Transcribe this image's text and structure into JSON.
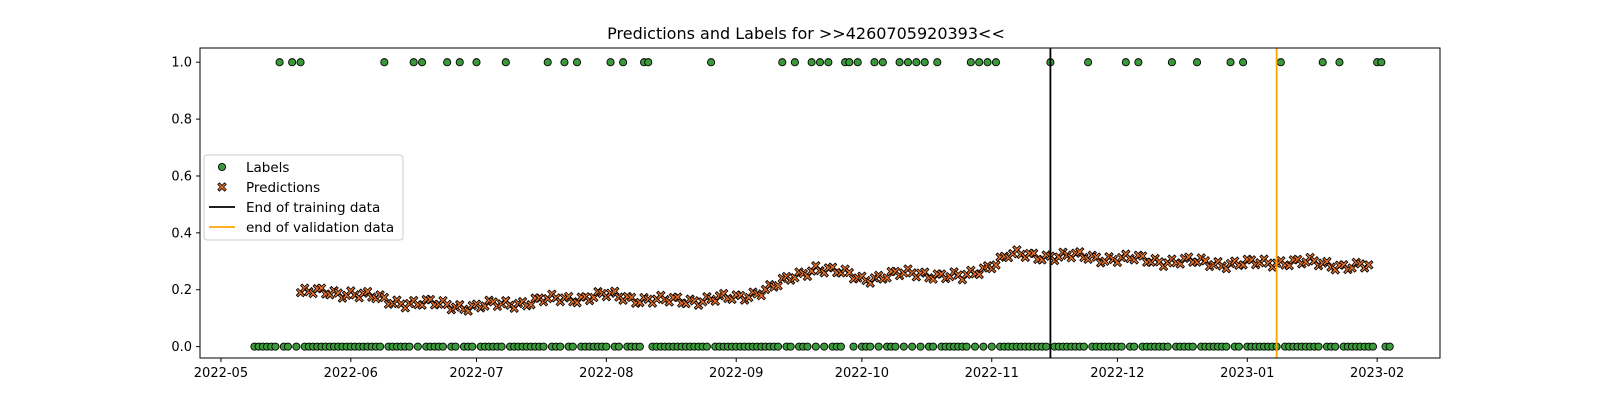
{
  "chart_data": {
    "type": "scatter",
    "title": "Predictions and Labels for >>4260705920393<<",
    "xlabel": "",
    "ylabel": "",
    "xlim": [
      "2022-04-26",
      "2023-02-16"
    ],
    "ylim": [
      -0.04,
      1.05
    ],
    "x_ticks": [
      "2022-05",
      "2022-06",
      "2022-07",
      "2022-08",
      "2022-09",
      "2022-10",
      "2022-11",
      "2022-12",
      "2023-01",
      "2023-02"
    ],
    "y_ticks": [
      "0.0",
      "0.2",
      "0.4",
      "0.6",
      "0.8",
      "1.0"
    ],
    "grid": false,
    "legend_placement": "center-left",
    "series": [
      {
        "name": "Labels",
        "kind": "points",
        "color": "#3a9a3a",
        "edge_color": "#000000",
        "ones_dates": [
          "2022-05-15",
          "2022-05-18",
          "2022-05-20",
          "2022-06-09",
          "2022-06-16",
          "2022-06-18",
          "2022-06-24",
          "2022-06-27",
          "2022-07-01",
          "2022-07-08",
          "2022-07-18",
          "2022-07-22",
          "2022-07-25",
          "2022-08-02",
          "2022-08-05",
          "2022-08-10",
          "2022-08-11",
          "2022-08-26",
          "2022-09-12",
          "2022-09-15",
          "2022-09-19",
          "2022-09-21",
          "2022-09-23",
          "2022-09-27",
          "2022-09-28",
          "2022-09-30",
          "2022-10-04",
          "2022-10-06",
          "2022-10-10",
          "2022-10-12",
          "2022-10-14",
          "2022-10-16",
          "2022-10-19",
          "2022-10-27",
          "2022-10-29",
          "2022-10-31",
          "2022-11-02",
          "2022-11-15",
          "2022-11-24",
          "2022-12-03",
          "2022-12-06",
          "2022-12-14",
          "2022-12-20",
          "2022-12-28",
          "2022-12-31",
          "2023-01-09",
          "2023-01-19",
          "2023-01-23",
          "2023-02-01",
          "2023-02-02"
        ],
        "zeros_start": "2022-05-09",
        "zeros_end": "2023-02-04"
      },
      {
        "name": "Predictions",
        "kind": "points",
        "color": "#e8722b",
        "edge_color": "#000000",
        "x_start": "2022-05-20",
        "x_end": "2023-01-30",
        "y_anchors": [
          [
            "2022-05-20",
            0.19
          ],
          [
            "2022-06-01",
            0.19
          ],
          [
            "2022-06-10",
            0.16
          ],
          [
            "2022-06-20",
            0.15
          ],
          [
            "2022-07-01",
            0.14
          ],
          [
            "2022-07-15",
            0.16
          ],
          [
            "2022-08-01",
            0.18
          ],
          [
            "2022-08-15",
            0.16
          ],
          [
            "2022-09-01",
            0.17
          ],
          [
            "2022-09-10",
            0.21
          ],
          [
            "2022-09-20",
            0.28
          ],
          [
            "2022-10-01",
            0.24
          ],
          [
            "2022-10-15",
            0.26
          ],
          [
            "2022-10-25",
            0.24
          ],
          [
            "2022-11-05",
            0.32
          ],
          [
            "2022-11-15",
            0.32
          ],
          [
            "2022-12-01",
            0.31
          ],
          [
            "2022-12-15",
            0.3
          ],
          [
            "2023-01-01",
            0.29
          ],
          [
            "2023-01-10",
            0.3
          ],
          [
            "2023-01-20",
            0.29
          ],
          [
            "2023-01-30",
            0.28
          ]
        ]
      }
    ],
    "vertical_lines": [
      {
        "name": "End of training data",
        "date": "2022-11-15",
        "color": "#000000"
      },
      {
        "name": "end of validation data",
        "date": "2023-01-08",
        "color": "#ffa500"
      }
    ]
  }
}
